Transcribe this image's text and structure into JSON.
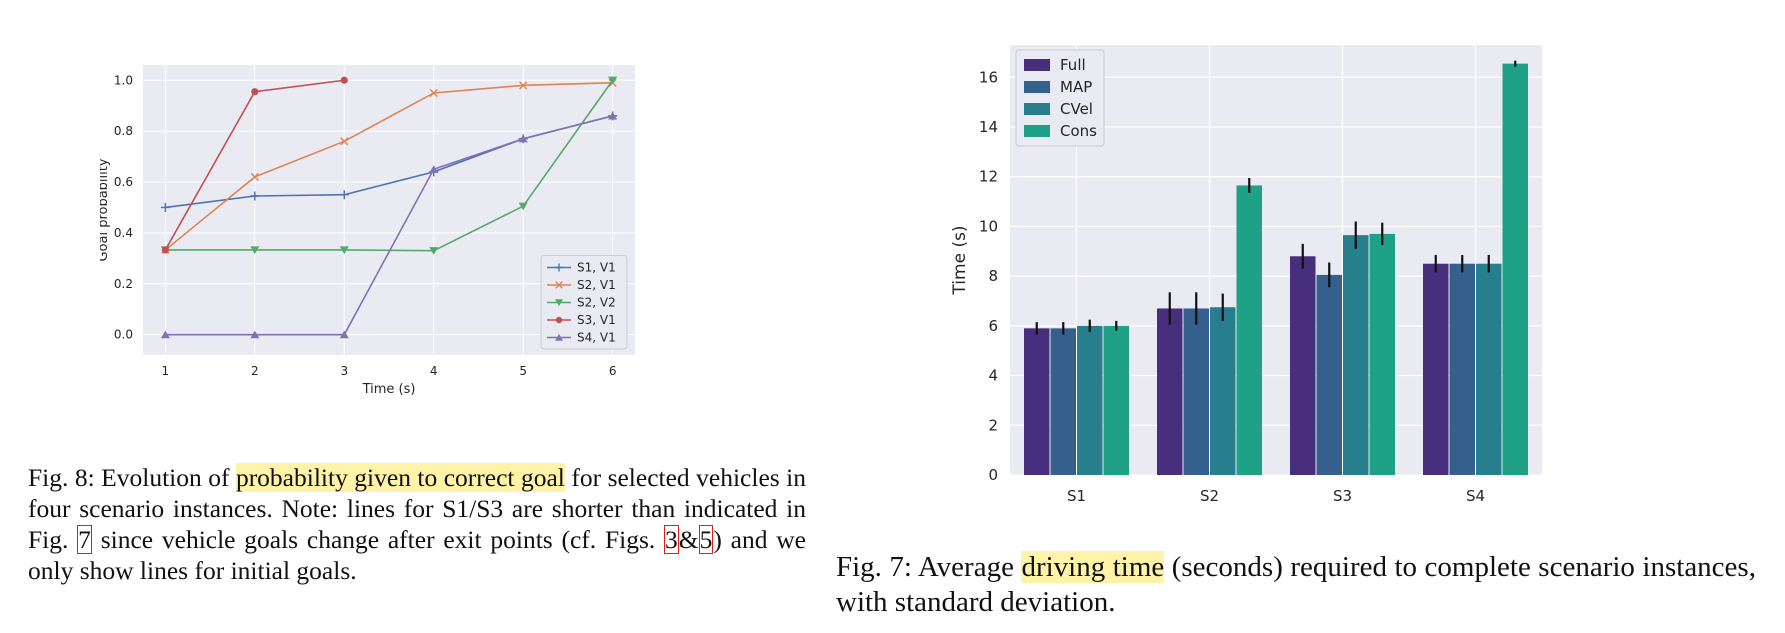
{
  "chart_data": [
    {
      "id": "fig8",
      "type": "line",
      "title": "",
      "xlabel": "Time (s)",
      "ylabel": "Goal probability",
      "xlim": [
        0.75,
        6.25
      ],
      "ylim": [
        -0.08,
        1.06
      ],
      "xticks": [
        1,
        2,
        3,
        4,
        5,
        6
      ],
      "yticks": [
        "0.0",
        "0.2",
        "0.4",
        "0.6",
        "0.8",
        "1.0"
      ],
      "legend_position": "lower-right",
      "series": [
        {
          "name": "S1, V1",
          "color": "#4c72b0",
          "marker": "plus",
          "x": [
            1,
            2,
            3,
            4,
            5,
            6
          ],
          "y": [
            0.5,
            0.545,
            0.55,
            0.64,
            0.77,
            0.86
          ]
        },
        {
          "name": "S2, V1",
          "color": "#dd8452",
          "marker": "x",
          "x": [
            1,
            2,
            3,
            4,
            5,
            6
          ],
          "y": [
            0.333,
            0.62,
            0.76,
            0.95,
            0.98,
            0.99
          ]
        },
        {
          "name": "S2, V2",
          "color": "#55a868",
          "marker": "tri_down",
          "x": [
            1,
            2,
            3,
            4,
            5,
            6
          ],
          "y": [
            0.333,
            0.333,
            0.333,
            0.33,
            0.505,
            1.0
          ]
        },
        {
          "name": "S3, V1",
          "color": "#c44e52",
          "marker": "circle",
          "x": [
            1,
            2,
            3
          ],
          "y": [
            0.333,
            0.955,
            1.0
          ]
        },
        {
          "name": "S4, V1",
          "color": "#8172b3",
          "marker": "tri_up",
          "x": [
            1,
            2,
            3,
            4,
            5,
            6
          ],
          "y": [
            0.0,
            0.0,
            0.0,
            0.65,
            0.77,
            0.86
          ]
        }
      ]
    },
    {
      "id": "fig7",
      "type": "bar",
      "title": "",
      "xlabel": "",
      "ylabel": "Time (s)",
      "ylim": [
        0,
        17.3
      ],
      "yticks": [
        "0",
        "2",
        "4",
        "6",
        "8",
        "10",
        "12",
        "14",
        "16"
      ],
      "categories": [
        "S1",
        "S2",
        "S3",
        "S4"
      ],
      "legend_position": "top-left",
      "series": [
        {
          "name": "Full",
          "color": "#472f7d",
          "values": [
            5.9,
            6.7,
            8.8,
            8.5
          ],
          "errors": [
            0.25,
            0.65,
            0.5,
            0.35
          ]
        },
        {
          "name": "MAP",
          "color": "#355f8d",
          "values": [
            5.9,
            6.7,
            8.05,
            8.5
          ],
          "errors": [
            0.25,
            0.65,
            0.5,
            0.35
          ]
        },
        {
          "name": "CVel",
          "color": "#277f8e",
          "values": [
            6.0,
            6.75,
            9.65,
            8.5
          ],
          "errors": [
            0.25,
            0.55,
            0.55,
            0.35
          ]
        },
        {
          "name": "Cons",
          "color": "#1fa187",
          "values": [
            6.0,
            11.65,
            9.7,
            16.55
          ],
          "errors": [
            0.2,
            0.3,
            0.45,
            0.12
          ]
        }
      ]
    }
  ],
  "captions": {
    "fig8": {
      "prefix": "Fig. 8: Evolution of ",
      "highlight": "probability given to correct goal",
      "middle": " for selected vehicles in four scenario instances. Note: lines for S1/S3 are shorter than indicated in Fig. ",
      "ref1": "7",
      "middle2": " since vehicle goals change after exit points (cf. Figs. ",
      "ref2": "3",
      "amp": "&",
      "ref3": "5",
      "suffix": ") and we only show lines for initial goals."
    },
    "fig7": {
      "prefix": "Fig. 7: Average ",
      "highlight": "driving time",
      "suffix": " (seconds) required to complete scenario instances, with standard deviation."
    }
  }
}
